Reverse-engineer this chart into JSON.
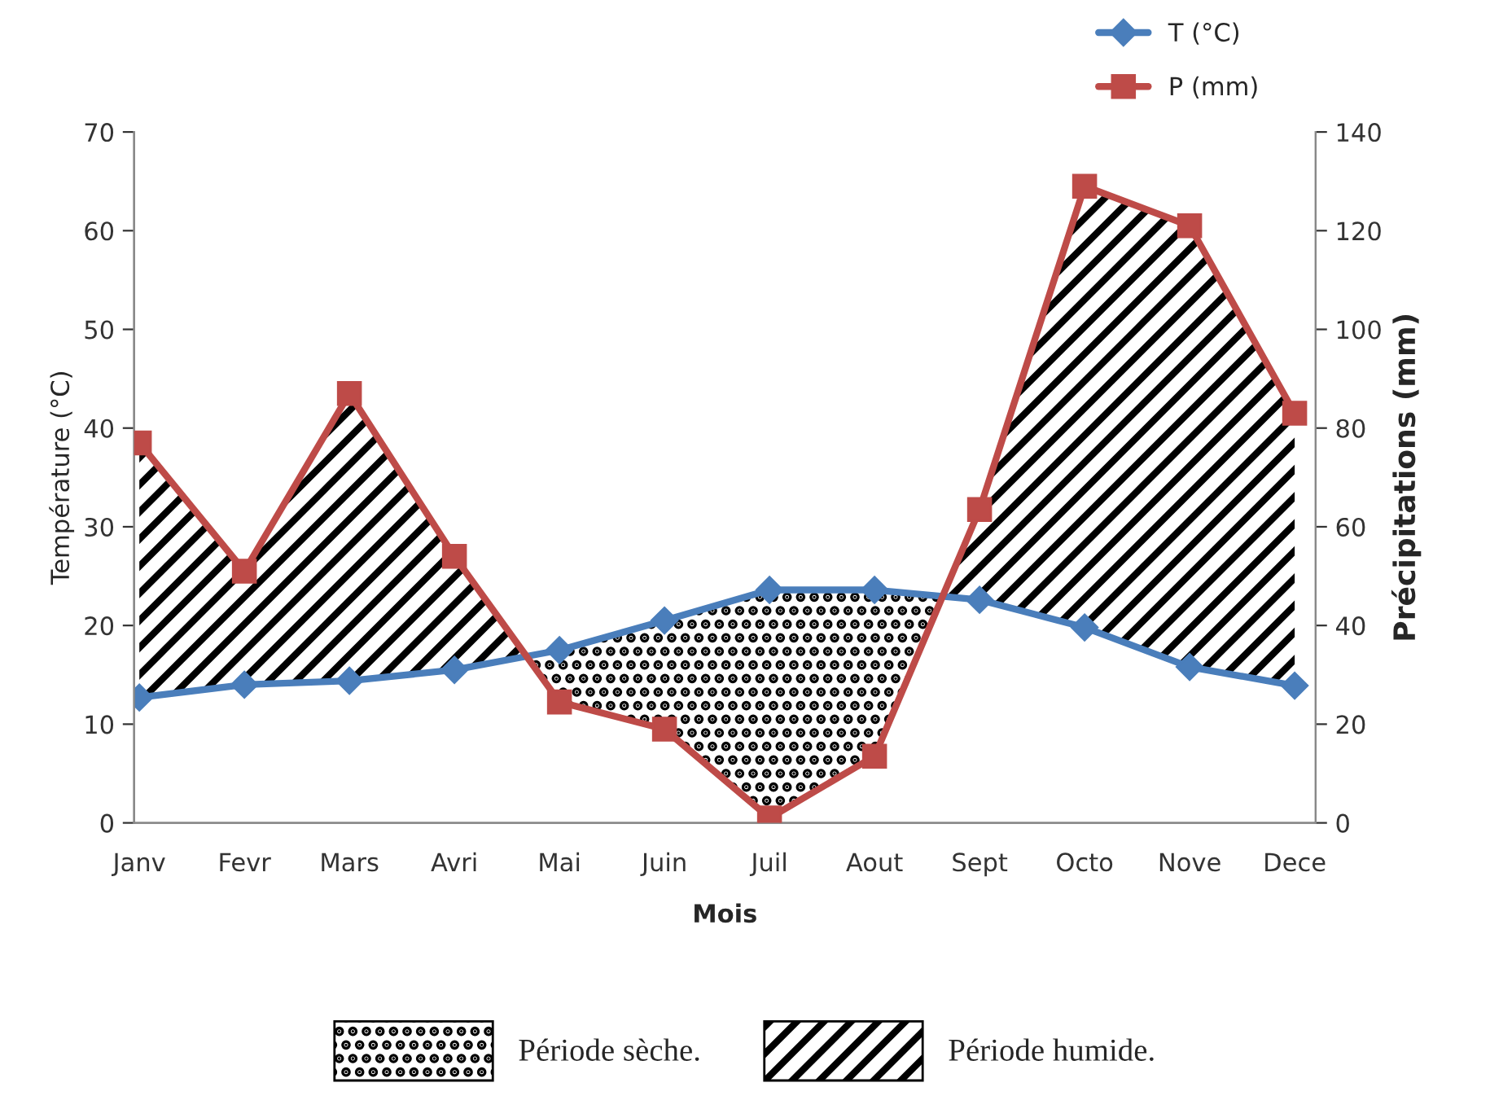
{
  "chart_data": {
    "type": "line",
    "xlabel": "Mois",
    "ylabel": "Température (°C)",
    "y2label": "Précipitations (mm)",
    "categories": [
      "Janv",
      "Fevr",
      "Mars",
      "Avri",
      "Mai",
      "Juin",
      "Juil",
      "Aout",
      "Sept",
      "Octo",
      "Nove",
      "Dece"
    ],
    "series": [
      {
        "name": "T (°C)",
        "color": "#4a7ebb",
        "marker": "diamond",
        "values": [
          12.7,
          14,
          14.4,
          15.5,
          17.5,
          20.5,
          23.6,
          23.6,
          22.6,
          19.8,
          15.8,
          13.9
        ]
      },
      {
        "name": "P (mm)",
        "color": "#be4b48",
        "marker": "square",
        "axis": "y2",
        "values": [
          77,
          51,
          87,
          54,
          24.5,
          19,
          1,
          13.5,
          63.5,
          129,
          121,
          83
        ]
      }
    ],
    "ylim": [
      0,
      70
    ],
    "yticks": [
      0,
      10,
      20,
      30,
      40,
      50,
      60,
      70
    ],
    "y2lim": [
      0,
      140
    ],
    "y2ticks": [
      0,
      20,
      40,
      60,
      80,
      100,
      120,
      140
    ],
    "grid": false,
    "legend": "top right",
    "annotations": [
      "Période sèche.",
      "Période humide."
    ]
  }
}
